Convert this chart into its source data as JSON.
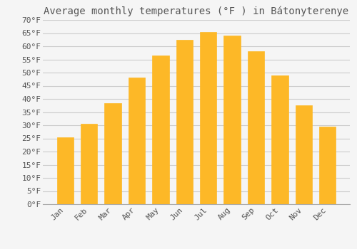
{
  "title": "Average monthly temperatures (°F ) in Bátonyterenye",
  "months": [
    "Jan",
    "Feb",
    "Mar",
    "Apr",
    "May",
    "Jun",
    "Jul",
    "Aug",
    "Sep",
    "Oct",
    "Nov",
    "Dec"
  ],
  "values": [
    25.5,
    30.5,
    38.5,
    48.0,
    56.5,
    62.5,
    65.5,
    64.0,
    58.0,
    49.0,
    37.5,
    29.5
  ],
  "bar_color": "#FDB827",
  "bar_edge_color": "#FDB827",
  "background_color": "#f5f5f5",
  "grid_color": "#cccccc",
  "text_color": "#555555",
  "ylim": [
    0,
    70
  ],
  "yticks": [
    0,
    5,
    10,
    15,
    20,
    25,
    30,
    35,
    40,
    45,
    50,
    55,
    60,
    65,
    70
  ],
  "title_fontsize": 10,
  "tick_fontsize": 8,
  "font_family": "monospace"
}
